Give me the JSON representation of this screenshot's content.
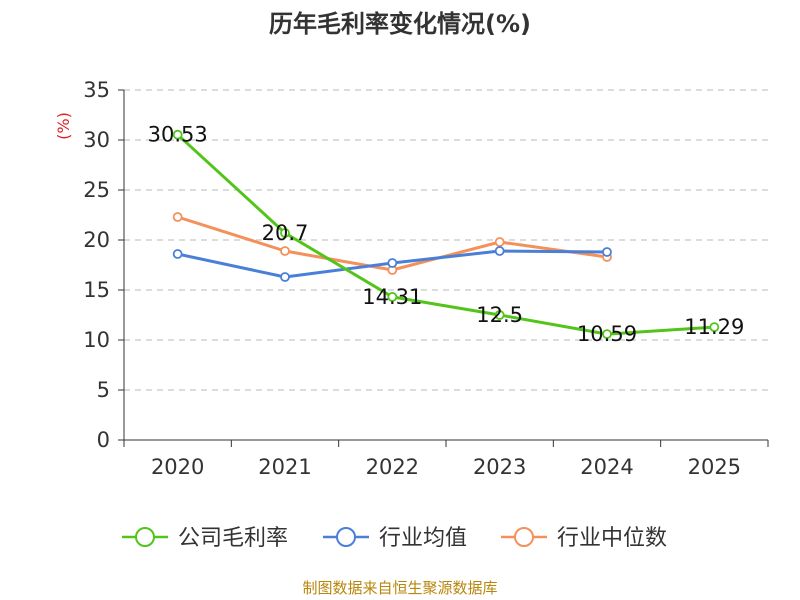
{
  "chart_data": {
    "type": "line",
    "title": "历年毛利率变化情况(%)",
    "ylabel": "(%)",
    "xlabel": "",
    "categories": [
      "2020",
      "2021",
      "2022",
      "2023",
      "2024",
      "2025"
    ],
    "ylim": [
      0,
      35
    ],
    "yticks": [
      0,
      5,
      10,
      15,
      20,
      25,
      30,
      35
    ],
    "grid": true,
    "legend_position": "bottom",
    "series": [
      {
        "name": "公司毛利率",
        "color": "#52c41a",
        "values": [
          30.53,
          20.7,
          14.31,
          12.5,
          10.59,
          11.29
        ],
        "labels": [
          "30.53",
          "20.7",
          "14.31",
          "12.5",
          "10.59",
          "11.29"
        ]
      },
      {
        "name": "行业均值",
        "color": "#4a7fd8",
        "values": [
          18.6,
          16.3,
          17.7,
          18.9,
          18.8,
          null
        ]
      },
      {
        "name": "行业中位数",
        "color": "#f4905a",
        "values": [
          22.3,
          18.9,
          17.0,
          19.8,
          18.3,
          null
        ]
      }
    ]
  },
  "footer": {
    "source": "制图数据来自恒生聚源数据库"
  }
}
